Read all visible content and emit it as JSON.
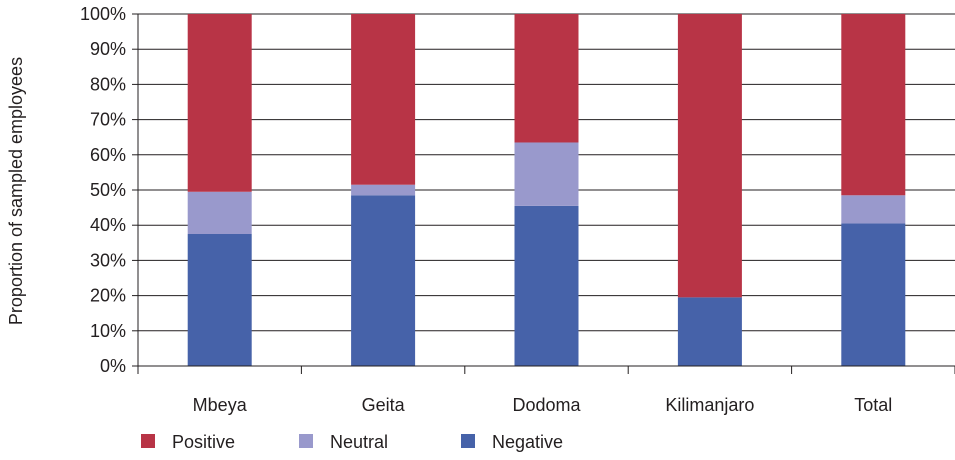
{
  "chart_data": {
    "type": "bar",
    "stacked": true,
    "ylabel": "Proportion of sampled employees",
    "ylim": [
      0,
      100
    ],
    "yticks": [
      "0%",
      "10%",
      "20%",
      "30%",
      "40%",
      "50%",
      "60%",
      "70%",
      "80%",
      "90%",
      "100%"
    ],
    "categories": [
      "Mbeya",
      "Geita",
      "Dodoma",
      "Kilimanjaro",
      "Total"
    ],
    "series": [
      {
        "name": "Negative",
        "color": "#4662a9",
        "values": [
          37.5,
          48.5,
          45.5,
          19.5,
          40.5
        ]
      },
      {
        "name": "Neutral",
        "color": "#9999cc",
        "values": [
          12.0,
          3.0,
          18.0,
          0,
          8.0
        ]
      },
      {
        "name": "Positive",
        "color": "#b83446",
        "values": [
          50.5,
          48.5,
          36.5,
          80.5,
          51.5
        ]
      }
    ],
    "legend": {
      "position": "bottom-left",
      "order": [
        "Positive",
        "Neutral",
        "Negative"
      ]
    },
    "grid": true
  }
}
